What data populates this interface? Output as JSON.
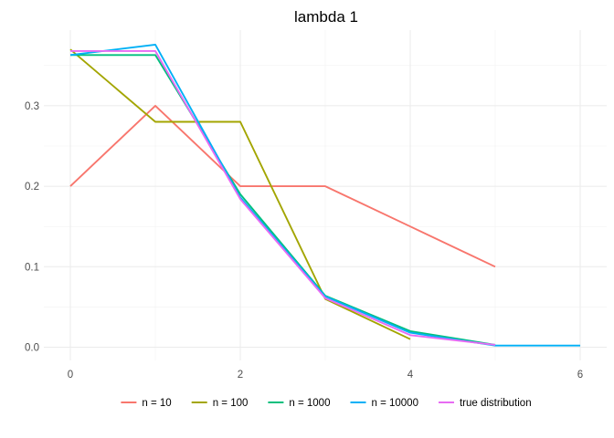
{
  "chart_data": {
    "type": "line",
    "title": "lambda 1",
    "xlabel": "",
    "ylabel": "",
    "xlim": [
      0,
      6
    ],
    "ylim": [
      0,
      0.37
    ],
    "x_ticks": [
      0,
      2,
      4,
      6
    ],
    "x_tick_labels": [
      "0",
      "2",
      "4",
      "6"
    ],
    "y_ticks": [
      0.0,
      0.1,
      0.2,
      0.3
    ],
    "y_tick_labels": [
      "0.0",
      "0.1",
      "0.2",
      "0.3"
    ],
    "grid": true,
    "legend_position": "bottom",
    "series": [
      {
        "name": "n =  10",
        "color": "#F8766D",
        "x": [
          0,
          1,
          2,
          3,
          4,
          5
        ],
        "y": [
          0.2,
          0.3,
          0.2,
          0.2,
          0.15,
          0.1
        ]
      },
      {
        "name": "n =  100",
        "color": "#A3A500",
        "x": [
          0,
          1,
          2,
          3,
          4
        ],
        "y": [
          0.37,
          0.28,
          0.28,
          0.06,
          0.01
        ]
      },
      {
        "name": "n =  1000",
        "color": "#00BF7D",
        "x": [
          0,
          1,
          2,
          3,
          4,
          5
        ],
        "y": [
          0.363,
          0.363,
          0.19,
          0.064,
          0.02,
          0.003
        ]
      },
      {
        "name": "n =  10000",
        "color": "#00B0F6",
        "x": [
          0,
          1,
          2,
          3,
          4,
          5,
          6
        ],
        "y": [
          0.363,
          0.376,
          0.186,
          0.063,
          0.018,
          0.002,
          0.002
        ]
      },
      {
        "name": "true distribution",
        "color": "#E76BF3",
        "x": [
          0,
          1,
          2,
          3,
          4,
          5
        ],
        "y": [
          0.368,
          0.368,
          0.184,
          0.061,
          0.015,
          0.003
        ]
      }
    ]
  }
}
